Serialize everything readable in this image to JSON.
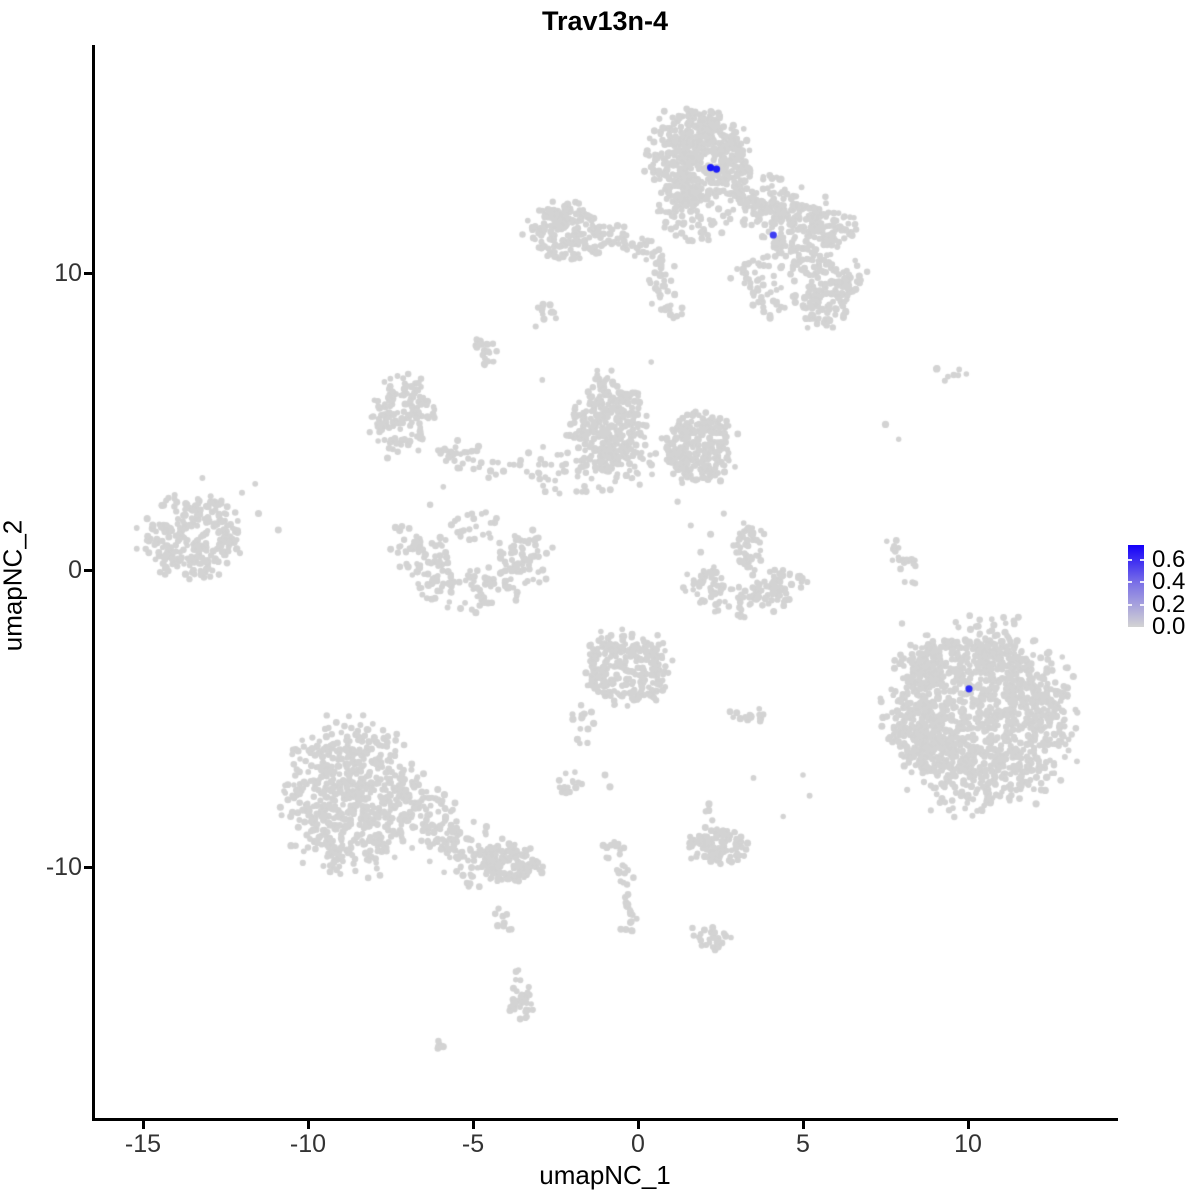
{
  "title": "Trav13n-4",
  "axes": {
    "x": {
      "label": "umapNC_1",
      "ticks": [
        {
          "value": -15,
          "label": "-15"
        },
        {
          "value": -10,
          "label": "-10"
        },
        {
          "value": -5,
          "label": "-5"
        },
        {
          "value": 0,
          "label": "0"
        },
        {
          "value": 5,
          "label": "5"
        },
        {
          "value": 10,
          "label": "10"
        }
      ]
    },
    "y": {
      "label": "umapNC_2",
      "ticks": [
        {
          "value": 10,
          "label": "10"
        },
        {
          "value": 0,
          "label": "0"
        },
        {
          "value": -10,
          "label": "-10"
        }
      ]
    }
  },
  "legend": {
    "entries": [
      {
        "label": "0.6",
        "value": 0.6
      },
      {
        "label": "0.4",
        "value": 0.4
      },
      {
        "label": "0.2",
        "value": 0.2
      },
      {
        "label": "0.0",
        "value": 0.0
      }
    ],
    "max_value": 0.705,
    "high_color": "#1400FA",
    "low_color": "#D3D3D3"
  },
  "colors": {
    "point_gray": "#D3D3D3",
    "point_blue": "#0A00F0",
    "axis": "#000000",
    "background": "#FFFFFF"
  },
  "chart_data": {
    "type": "scatter",
    "title": "Trav13n-4",
    "xlabel": "umapNC_1",
    "ylabel": "umapNC_2",
    "xlim": [
      -16.5,
      14.5
    ],
    "ylim": [
      -18.5,
      17.7
    ],
    "grid": false,
    "legend_position": "right",
    "seed": 42,
    "point_radius_px": 3.1,
    "clusters": [
      {
        "name": "top-main",
        "type": "gauss",
        "cx": 1.85,
        "cy": 13.9,
        "rx": 1.4,
        "ry": 1.6,
        "n": 520
      },
      {
        "name": "top-main-fringe",
        "type": "gauss",
        "cx": 1.6,
        "cy": 11.9,
        "rx": 1.0,
        "ry": 0.9,
        "n": 80
      },
      {
        "name": "top-left-blob",
        "type": "gauss",
        "cx": -2.2,
        "cy": 11.4,
        "rx": 1.05,
        "ry": 0.95,
        "n": 175
      },
      {
        "name": "top-left-tail",
        "type": "band",
        "x1": -1.25,
        "y1": 11.2,
        "x2": 0.4,
        "y2": 10.9,
        "w": 0.5,
        "n": 40
      },
      {
        "name": "neck-strand",
        "type": "band",
        "x1": 0.55,
        "y1": 10.8,
        "x2": 0.95,
        "y2": 8.4,
        "w": 0.45,
        "n": 45
      },
      {
        "name": "small-clump-a",
        "type": "gauss",
        "cx": -2.8,
        "cy": 8.7,
        "rx": 0.4,
        "ry": 0.28,
        "n": 12
      },
      {
        "name": "small-clump-b",
        "type": "gauss",
        "cx": -4.6,
        "cy": 7.3,
        "rx": 0.38,
        "ry": 0.5,
        "n": 22
      },
      {
        "name": "arm-upper-fan",
        "type": "band",
        "x1": 2.9,
        "y1": 12.7,
        "x2": 5.4,
        "y2": 11.6,
        "w": 1.0,
        "n": 210
      },
      {
        "name": "arm-diagonal",
        "type": "band",
        "x1": 4.2,
        "y1": 11.2,
        "x2": 6.6,
        "y2": 9.4,
        "w": 0.85,
        "n": 150
      },
      {
        "name": "arm-right-clump",
        "type": "gauss",
        "cx": 6.0,
        "cy": 11.5,
        "rx": 0.75,
        "ry": 0.6,
        "n": 60
      },
      {
        "name": "arm-lower-clump",
        "type": "gauss",
        "cx": 5.6,
        "cy": 9.0,
        "rx": 0.75,
        "ry": 0.85,
        "n": 75
      },
      {
        "name": "arm-inner-band",
        "type": "band",
        "x1": 3.2,
        "y1": 10.3,
        "x2": 4.4,
        "y2": 8.7,
        "w": 0.6,
        "n": 55
      },
      {
        "name": "hook-left",
        "type": "gauss",
        "cx": -7.1,
        "cy": 5.2,
        "rx": 0.95,
        "ry": 1.25,
        "n": 150
      },
      {
        "name": "hook-strand",
        "type": "band",
        "x1": -6.1,
        "y1": 4.0,
        "x2": -3.6,
        "y2": 3.4,
        "w": 0.5,
        "n": 40
      },
      {
        "name": "central-blob-left",
        "type": "gauss",
        "cx": -0.9,
        "cy": 4.9,
        "rx": 1.05,
        "ry": 1.6,
        "n": 300
      },
      {
        "name": "central-blob-right",
        "type": "gauss",
        "cx": 1.8,
        "cy": 4.1,
        "rx": 1.05,
        "ry": 1.1,
        "n": 255
      },
      {
        "name": "central-lower-band",
        "type": "band",
        "x1": -3.4,
        "y1": 3.3,
        "x2": 0.4,
        "y2": 3.6,
        "w": 0.8,
        "n": 85
      },
      {
        "name": "bowl",
        "type": "arc",
        "cx": -5.0,
        "cy": 0.7,
        "r": 1.45,
        "a1": 155,
        "a2": 385,
        "w": 0.8,
        "sx": 1.15,
        "n": 210
      },
      {
        "name": "bowl-inner-dots",
        "type": "gauss",
        "cx": -4.9,
        "cy": 1.5,
        "rx": 0.8,
        "ry": 0.5,
        "n": 22
      },
      {
        "name": "left-cluster",
        "type": "gauss",
        "cx": -13.5,
        "cy": 1.1,
        "rx": 1.4,
        "ry": 1.4,
        "n": 270
      },
      {
        "name": "left-outliers",
        "type": "pts",
        "pts": [
          [
            -12.0,
            2.6
          ],
          [
            -11.6,
            2.9
          ],
          [
            -11.5,
            1.9
          ],
          [
            -10.9,
            1.35
          ],
          [
            -12.4,
            0.95
          ],
          [
            -13.2,
            3.1
          ]
        ]
      },
      {
        "name": "crescent",
        "type": "arc",
        "cx": 3.2,
        "cy": 0.3,
        "r": 1.35,
        "a1": 195,
        "a2": 345,
        "w": 0.6,
        "sx": 1.1,
        "n": 135
      },
      {
        "name": "crescent-top-clump",
        "type": "gauss",
        "cx": 3.35,
        "cy": 0.75,
        "rx": 0.45,
        "ry": 0.8,
        "n": 45
      },
      {
        "name": "crescent-side-dots",
        "type": "pts",
        "pts": [
          [
            2.2,
            1.2
          ],
          [
            1.9,
            0.6
          ],
          [
            2.3,
            0.1
          ],
          [
            1.6,
            1.5
          ],
          [
            2.6,
            1.9
          ],
          [
            2.5,
            3.0
          ],
          [
            1.2,
            2.3
          ]
        ]
      },
      {
        "name": "right-strand",
        "type": "band",
        "x1": 7.75,
        "y1": 1.1,
        "x2": 8.3,
        "y2": -0.5,
        "w": 0.35,
        "n": 22
      },
      {
        "name": "right-top-clump",
        "type": "gauss",
        "cx": 9.5,
        "cy": 6.6,
        "rx": 0.5,
        "ry": 0.25,
        "n": 8
      },
      {
        "name": "right-cluster",
        "type": "gauss",
        "cx": 10.4,
        "cy": -4.9,
        "rx": 2.6,
        "ry": 2.9,
        "n": 1300
      },
      {
        "name": "right-cluster-nw",
        "type": "gauss",
        "cx": 8.9,
        "cy": -3.3,
        "rx": 0.9,
        "ry": 0.8,
        "n": 90
      },
      {
        "name": "right-cluster-w",
        "type": "gauss",
        "cx": 8.5,
        "cy": -5.6,
        "rx": 0.7,
        "ry": 0.9,
        "n": 70
      },
      {
        "name": "center-bottom-blob",
        "type": "gauss",
        "cx": -0.3,
        "cy": -3.3,
        "rx": 1.25,
        "ry": 1.2,
        "n": 260
      },
      {
        "name": "center-bottom-tail",
        "type": "band",
        "x1": -1.55,
        "y1": -4.6,
        "x2": -2.0,
        "y2": -6.2,
        "w": 0.35,
        "n": 16
      },
      {
        "name": "small-clump-right",
        "type": "gauss",
        "cx": 3.3,
        "cy": -4.9,
        "rx": 0.55,
        "ry": 0.25,
        "n": 14
      },
      {
        "name": "small-clump-left",
        "type": "gauss",
        "cx": -2.1,
        "cy": -7.0,
        "rx": 0.4,
        "ry": 0.5,
        "n": 16
      },
      {
        "name": "sparse-dots-mid",
        "type": "pts",
        "pts": [
          [
            5.0,
            -6.9
          ],
          [
            5.2,
            -7.6
          ],
          [
            -1.0,
            -6.9
          ],
          [
            -0.85,
            -7.3
          ],
          [
            3.5,
            -7.0
          ]
        ]
      },
      {
        "name": "bottomleft-main",
        "type": "gauss",
        "cx": -8.7,
        "cy": -7.6,
        "rx": 1.85,
        "ry": 2.4,
        "n": 640
      },
      {
        "name": "bottomleft-arm",
        "type": "band",
        "x1": -6.9,
        "y1": -8.0,
        "x2": -4.3,
        "y2": -10.2,
        "w": 1.0,
        "n": 170
      },
      {
        "name": "bottomleft-arm-end",
        "type": "gauss",
        "cx": -3.9,
        "cy": -9.9,
        "rx": 0.9,
        "ry": 0.6,
        "n": 105
      },
      {
        "name": "tail-dotted",
        "type": "band",
        "x1": -4.15,
        "y1": -11.1,
        "x2": -3.95,
        "y2": -12.6,
        "w": 0.25,
        "n": 9
      },
      {
        "name": "tail-strand-2",
        "type": "band",
        "x1": -3.8,
        "y1": -13.4,
        "x2": -3.3,
        "y2": -15.0,
        "w": 0.3,
        "n": 18
      },
      {
        "name": "tail-clump",
        "type": "gauss",
        "cx": -3.5,
        "cy": -14.8,
        "rx": 0.42,
        "ry": 0.33,
        "n": 16
      },
      {
        "name": "tiny-diag-clump",
        "type": "gauss",
        "cx": -6.0,
        "cy": -15.9,
        "rx": 0.28,
        "ry": 0.18,
        "n": 7
      },
      {
        "name": "midbottom-blob",
        "type": "gauss",
        "cx": 2.4,
        "cy": -9.3,
        "rx": 0.85,
        "ry": 0.6,
        "n": 90
      },
      {
        "name": "midbottom-dots",
        "type": "band",
        "x1": 2.05,
        "y1": -7.8,
        "x2": 2.25,
        "y2": -8.7,
        "w": 0.2,
        "n": 5
      },
      {
        "name": "wavy-strand",
        "type": "band",
        "x1": -0.75,
        "y1": -9.0,
        "x2": -0.15,
        "y2": -12.2,
        "w": 0.35,
        "n": 40
      },
      {
        "name": "bottom-clump",
        "type": "gauss",
        "cx": 2.3,
        "cy": -12.4,
        "rx": 0.5,
        "ry": 0.35,
        "n": 28
      },
      {
        "name": "stray-singles",
        "type": "pts",
        "pts": [
          [
            -3.5,
            11.3
          ],
          [
            -3.1,
            8.2
          ],
          [
            7.5,
            4.9
          ],
          [
            7.9,
            4.4
          ],
          [
            8.0,
            -1.8
          ],
          [
            1.65,
            -12.05
          ],
          [
            -2.9,
            6.4
          ],
          [
            0.4,
            7.0
          ],
          [
            4.4,
            -8.3
          ],
          [
            -6.3,
            2.2
          ],
          [
            -5.9,
            2.8
          ]
        ]
      }
    ],
    "highlighted_cells": [
      {
        "x": 2.2,
        "y": 13.55,
        "value": 0.62
      },
      {
        "x": 2.38,
        "y": 13.5,
        "value": 0.6
      },
      {
        "x": 4.1,
        "y": 11.28,
        "value": 0.5
      },
      {
        "x": 10.03,
        "y": -4.0,
        "value": 0.55
      }
    ]
  }
}
